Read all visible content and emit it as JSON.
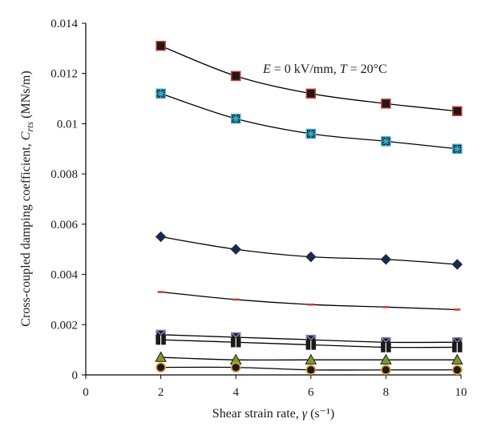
{
  "chart_data": {
    "type": "scatter",
    "annotation": "E = 0 kV/mm, T = 20°C",
    "xlabel": "Shear strain rate, γ (s⁻¹)",
    "ylabel": "Cross-coupled damping coefficient, C_rts (MNs/m)",
    "xlim": [
      0,
      10
    ],
    "ylim": [
      0,
      0.014
    ],
    "xticks": [
      0,
      2,
      4,
      6,
      8,
      10
    ],
    "yticks": [
      0,
      0.002,
      0.004,
      0.006,
      0.008,
      0.01,
      0.012,
      0.014
    ],
    "ytick_labels": [
      "0",
      "0.002",
      "0.004",
      "0.006",
      "0.008",
      "0.01",
      "0.012",
      "0.014"
    ],
    "grid": false,
    "series": [
      {
        "marker": "square",
        "fill": "#1a1a1a",
        "stroke": "#d0392b",
        "x": [
          2,
          4,
          6,
          8,
          9.9
        ],
        "y": [
          0.0131,
          0.0119,
          0.0112,
          0.0108,
          0.0105
        ]
      },
      {
        "marker": "square-star",
        "fill": "#1a1a1a",
        "stroke": "#3aa8c8",
        "x": [
          2,
          4,
          6,
          8,
          9.9
        ],
        "y": [
          0.0112,
          0.0102,
          0.0096,
          0.0093,
          0.009
        ]
      },
      {
        "marker": "diamond",
        "fill": "#1a2a4a",
        "stroke": "#1a2a4a",
        "x": [
          2,
          4,
          6,
          8,
          9.9
        ],
        "y": [
          0.0055,
          0.005,
          0.0047,
          0.0046,
          0.0044
        ]
      },
      {
        "marker": "dash",
        "fill": "#d0392b",
        "stroke": "#d0392b",
        "x": [
          2,
          4,
          6,
          8,
          9.9
        ],
        "y": [
          0.0033,
          0.003,
          0.0028,
          0.0027,
          0.0026
        ]
      },
      {
        "marker": "square-x",
        "fill": "#1a1a1a",
        "stroke": "#8a7ab0",
        "x": [
          2,
          4,
          6,
          8,
          9.9
        ],
        "y": [
          0.0016,
          0.0015,
          0.0014,
          0.0013,
          0.0013
        ]
      },
      {
        "marker": "square-plus",
        "fill": "#1a1a1a",
        "stroke": "#1a1a1a",
        "x": [
          2,
          4,
          6,
          8,
          9.9
        ],
        "y": [
          0.0014,
          0.0013,
          0.0012,
          0.0011,
          0.0011
        ]
      },
      {
        "marker": "triangle",
        "fill": "#7a9a30",
        "stroke": "#1a1a1a",
        "x": [
          2,
          4,
          6,
          8,
          9.9
        ],
        "y": [
          0.0007,
          0.0006,
          0.0006,
          0.0006,
          0.0006
        ]
      },
      {
        "marker": "circle",
        "fill": "#1a1a1a",
        "stroke": "#e0a030",
        "x": [
          2,
          4,
          6,
          8,
          9.9
        ],
        "y": [
          0.0003,
          0.0003,
          0.0002,
          0.0002,
          0.0002
        ]
      }
    ]
  }
}
